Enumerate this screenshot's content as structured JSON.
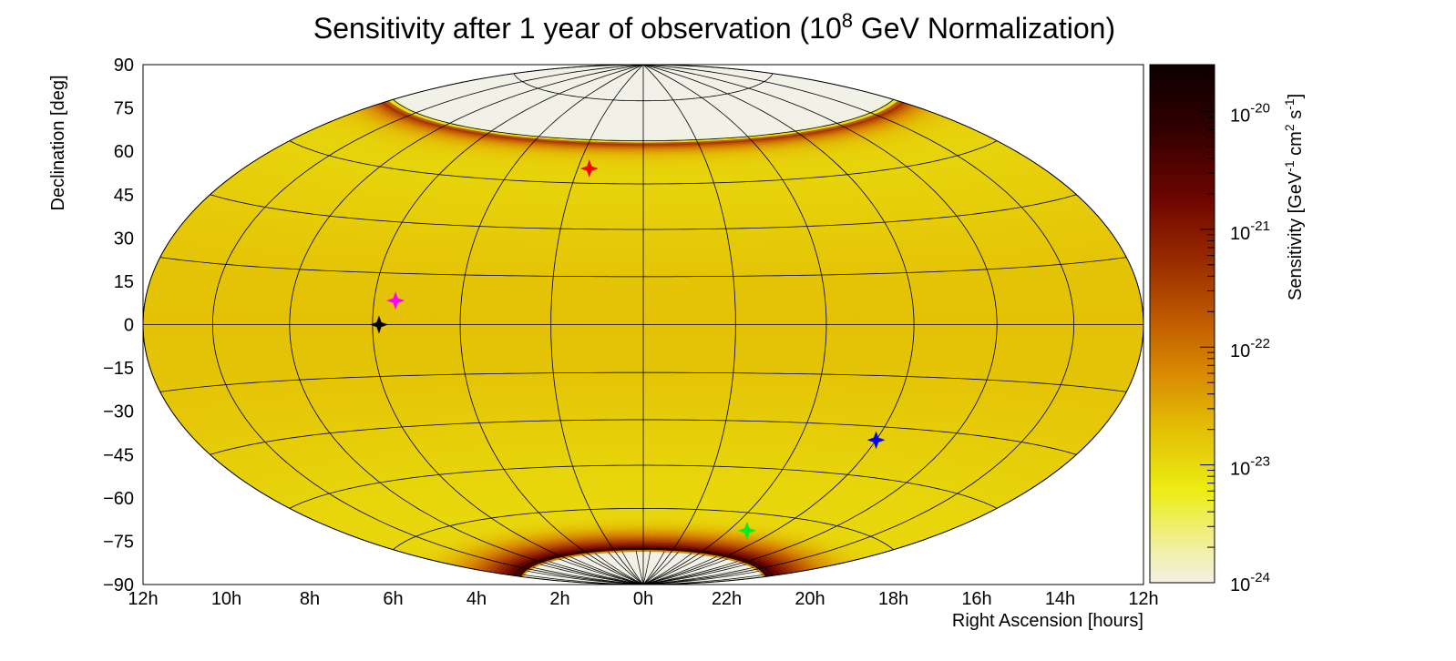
{
  "chart_data": {
    "type": "heatmap",
    "projection": "hammer-aitoff",
    "title": {
      "pre": "Sensitivity after 1 year of observation (10",
      "sup": "8",
      "post": " GeV Normalization)"
    },
    "xlabel": "Right Ascension [hours]",
    "ylabel": "Declination [deg]",
    "x_ticks": [
      "12h",
      "10h",
      "8h",
      "6h",
      "4h",
      "2h",
      "0h",
      "22h",
      "20h",
      "18h",
      "16h",
      "14h",
      "12h"
    ],
    "y_ticks": [
      90,
      75,
      60,
      45,
      30,
      15,
      0,
      -15,
      -30,
      -45,
      -60,
      -75,
      -90
    ],
    "y_tick_labels": [
      "90",
      "75",
      "60",
      "45",
      "30",
      "15",
      "0",
      "−15",
      "−30",
      "−45",
      "−60",
      "−75",
      "−90"
    ],
    "ra_range_hours": [
      -12,
      12
    ],
    "dec_range_deg": [
      -90,
      90
    ],
    "grid": true,
    "colorbar": {
      "label": {
        "a": "Sensitivity [GeV",
        "a_sup": "-1",
        "b": " cm",
        "b_sup": "2",
        "c": " s",
        "c_sup": "-1",
        "d": "]"
      },
      "scale": "log",
      "range": [
        1e-24,
        2.5e-20
      ],
      "tick_labels": [
        {
          "base": "10",
          "exp": "-20",
          "value": 1e-20
        },
        {
          "base": "10",
          "exp": "-21",
          "value": 1e-21
        },
        {
          "base": "10",
          "exp": "-22",
          "value": 1e-22
        },
        {
          "base": "10",
          "exp": "-23",
          "value": 1e-23
        },
        {
          "base": "10",
          "exp": "-24",
          "value": 1e-24
        }
      ],
      "stops": [
        {
          "t": 0.0,
          "color": "#f3f1e6"
        },
        {
          "t": 0.07,
          "color": "#f1ef9e"
        },
        {
          "t": 0.18,
          "color": "#ecec12"
        },
        {
          "t": 0.3,
          "color": "#e3bd05"
        },
        {
          "t": 0.4,
          "color": "#d98c03"
        },
        {
          "t": 0.5,
          "color": "#c25d01"
        },
        {
          "t": 0.62,
          "color": "#9a2c00"
        },
        {
          "t": 0.74,
          "color": "#6e0500"
        },
        {
          "t": 0.88,
          "color": "#300000"
        },
        {
          "t": 1.0,
          "color": "#0c0000"
        }
      ]
    },
    "sky_map": {
      "base_log10": -22.85,
      "north_edge_dec": 59,
      "south_edge_dec": -76,
      "blank_color": "#f2f1e8"
    },
    "sources": [
      {
        "ra_hours": 1.65,
        "dec": 50,
        "color": "#ff0000"
      },
      {
        "ra_hours": 5.5,
        "dec": 7,
        "color": "#ff00ff"
      },
      {
        "ra_hours": 5.85,
        "dec": 0,
        "color": "#000000"
      },
      {
        "ra_hours": -6.0,
        "dec": -34,
        "color": "#0000ff"
      },
      {
        "ra_hours": -4.8,
        "dec": -66,
        "color": "#00ee22"
      }
    ]
  }
}
